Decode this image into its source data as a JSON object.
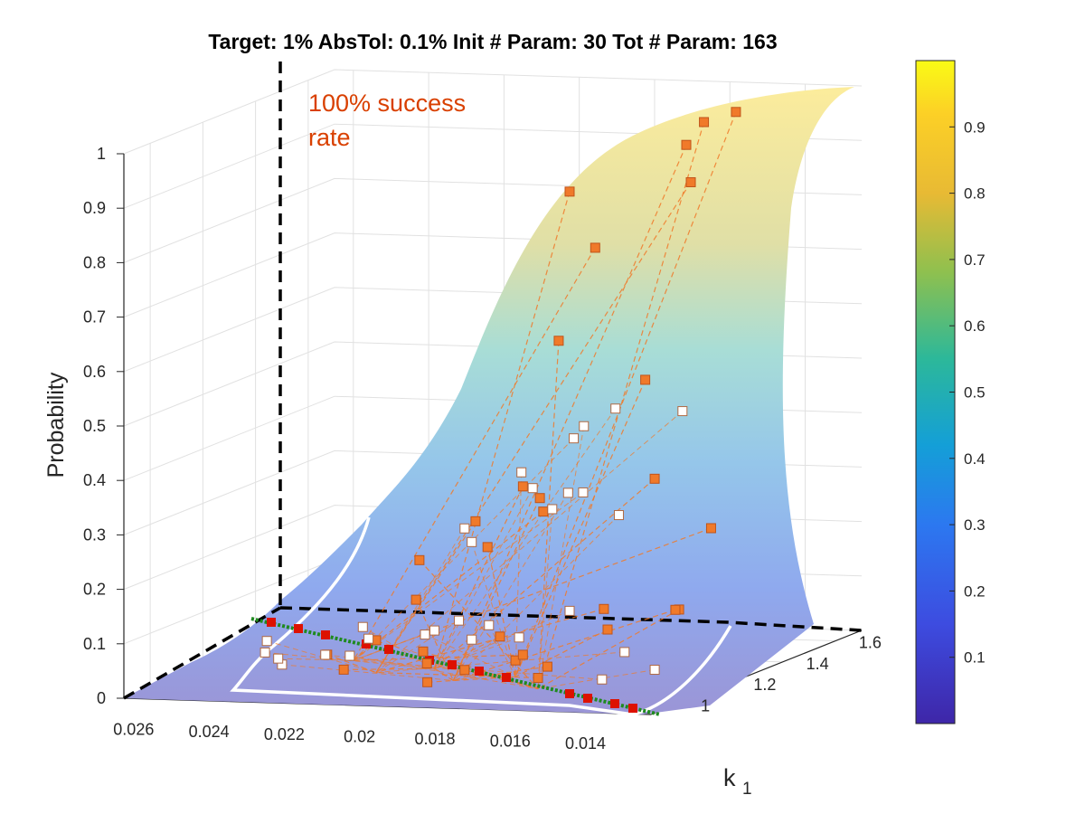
{
  "chart_data": {
    "type": "surface3d",
    "title": "Target: 1%  AbsTol: 0.1%  Init # Param: 30  Tot # Param: 163",
    "zlabel": "Probability",
    "xlabel": "k1",
    "xlabel_main": "k",
    "xlabel_sub": "1",
    "annotation_line1": "100% success",
    "annotation_line2": "rate",
    "x_ticks": [
      "0.026",
      "0.024",
      "0.022",
      "0.02",
      "0.018",
      "0.016",
      "0.014"
    ],
    "y_ticks": [
      "1",
      "1.2",
      "1.4",
      "1.6"
    ],
    "z_ticks": [
      "0",
      "0.1",
      "0.2",
      "0.3",
      "0.4",
      "0.5",
      "0.6",
      "0.7",
      "0.8",
      "0.9",
      "1"
    ],
    "colorbar_ticks": [
      "0.1",
      "0.2",
      "0.3",
      "0.4",
      "0.5",
      "0.6",
      "0.7",
      "0.8",
      "0.9"
    ],
    "colorbar_range": [
      0,
      1
    ],
    "colormap": [
      "#3e26a8",
      "#2f6ffb",
      "#15a7d4",
      "#2cc29a",
      "#a6c43c",
      "#fbb937",
      "#f9fb15"
    ],
    "surface_alpha": 0.45,
    "grid": true,
    "accent_colors": {
      "annotation": "#d94000",
      "marker": "#f07a2a",
      "boundary": "#000000",
      "contour": "#ffffff",
      "line_red": "#dd1100",
      "line_green": "#1f8a1f"
    },
    "xlim": [
      0.0125,
      0.0265
    ],
    "ylim": [
      0.9,
      1.7
    ],
    "zlim": [
      0,
      1
    ],
    "surface": {
      "logistic_center_x": 0.0168,
      "logistic_scale_x": 0.00135,
      "y_effect_center": 1.25,
      "y_effect_scale": 0.45
    },
    "series": [
      {
        "name": "Tot # Param",
        "points": [
          {
            "x": 0.0155,
            "y": 1.53,
            "z": 0.96
          },
          {
            "x": 0.015,
            "y": 1.58,
            "z": 0.97
          },
          {
            "x": 0.0152,
            "y": 1.42,
            "z": 0.94
          },
          {
            "x": 0.0162,
            "y": 1.12,
            "z": 0.91
          },
          {
            "x": 0.0148,
            "y": 1.38,
            "z": 0.88
          },
          {
            "x": 0.0158,
            "y": 1.16,
            "z": 0.8
          },
          {
            "x": 0.016,
            "y": 1.05,
            "z": 0.65
          },
          {
            "x": 0.0165,
            "y": 1.45,
            "z": 0.5
          },
          {
            "x": 0.0165,
            "y": 1.05,
            "z": 0.36
          },
          {
            "x": 0.0173,
            "y": 1.1,
            "z": 0.37
          },
          {
            "x": 0.018,
            "y": 1.02,
            "z": 0.32
          },
          {
            "x": 0.0176,
            "y": 1.22,
            "z": 0.3
          },
          {
            "x": 0.019,
            "y": 0.95,
            "z": 0.26
          },
          {
            "x": 0.0188,
            "y": 1.18,
            "z": 0.24
          },
          {
            "x": 0.02,
            "y": 1.08,
            "z": 0.16
          },
          {
            "x": 0.0152,
            "y": 1.3,
            "z": 0.35
          },
          {
            "x": 0.0148,
            "y": 1.05,
            "z": 0.16
          },
          {
            "x": 0.0158,
            "y": 1.6,
            "z": 0.2
          },
          {
            "x": 0.0156,
            "y": 1.45,
            "z": 0.08
          },
          {
            "x": 0.0168,
            "y": 1.35,
            "z": 0.06
          },
          {
            "x": 0.015,
            "y": 1.35,
            "z": 0.1
          },
          {
            "x": 0.017,
            "y": 0.97,
            "z": 0.12
          },
          {
            "x": 0.0162,
            "y": 1.0,
            "z": 0.04
          },
          {
            "x": 0.0205,
            "y": 1.0,
            "z": 0.1
          },
          {
            "x": 0.0185,
            "y": 1.05,
            "z": 0.04
          },
          {
            "x": 0.0175,
            "y": 1.1,
            "z": 0.05
          },
          {
            "x": 0.0195,
            "y": 1.05,
            "z": 0.05
          },
          {
            "x": 0.0215,
            "y": 1.02,
            "z": 0.04
          },
          {
            "x": 0.0225,
            "y": 1.1,
            "z": 0.05
          },
          {
            "x": 0.018,
            "y": 1.2,
            "z": 0.04
          },
          {
            "x": 0.021,
            "y": 1.25,
            "z": 0.03
          },
          {
            "x": 0.019,
            "y": 0.98,
            "z": 0.03
          },
          {
            "x": 0.017,
            "y": 1.15,
            "z": 0.03
          }
        ]
      },
      {
        "name": "Init # Param",
        "points": [
          {
            "x": 0.0168,
            "y": 1.38,
            "z": 0.46
          },
          {
            "x": 0.016,
            "y": 1.52,
            "z": 0.43
          },
          {
            "x": 0.017,
            "y": 1.25,
            "z": 0.43
          },
          {
            "x": 0.0175,
            "y": 1.36,
            "z": 0.43
          },
          {
            "x": 0.0172,
            "y": 1.08,
            "z": 0.4
          },
          {
            "x": 0.0168,
            "y": 1.2,
            "z": 0.34
          },
          {
            "x": 0.0183,
            "y": 1.28,
            "z": 0.33
          },
          {
            "x": 0.0185,
            "y": 1.05,
            "z": 0.3
          },
          {
            "x": 0.0178,
            "y": 1.4,
            "z": 0.3
          },
          {
            "x": 0.0182,
            "y": 1.34,
            "z": 0.28
          },
          {
            "x": 0.0195,
            "y": 1.22,
            "z": 0.24
          },
          {
            "x": 0.0172,
            "y": 1.45,
            "z": 0.25
          },
          {
            "x": 0.0162,
            "y": 1.12,
            "z": 0.14
          },
          {
            "x": 0.019,
            "y": 1.1,
            "z": 0.12
          },
          {
            "x": 0.02,
            "y": 1.15,
            "z": 0.09
          },
          {
            "x": 0.0212,
            "y": 1.0,
            "z": 0.07
          },
          {
            "x": 0.0222,
            "y": 1.05,
            "z": 0.06
          },
          {
            "x": 0.023,
            "y": 1.0,
            "z": 0.05
          },
          {
            "x": 0.0245,
            "y": 1.15,
            "z": 0.04
          },
          {
            "x": 0.0255,
            "y": 1.3,
            "z": 0.03
          },
          {
            "x": 0.0238,
            "y": 1.1,
            "z": 0.04
          },
          {
            "x": 0.0228,
            "y": 1.3,
            "z": 0.04
          },
          {
            "x": 0.022,
            "y": 1.4,
            "z": 0.03
          },
          {
            "x": 0.0202,
            "y": 1.32,
            "z": 0.04
          },
          {
            "x": 0.0195,
            "y": 1.4,
            "z": 0.03
          },
          {
            "x": 0.016,
            "y": 1.3,
            "z": 0.03
          },
          {
            "x": 0.0152,
            "y": 1.1,
            "z": 0.02
          },
          {
            "x": 0.0145,
            "y": 1.2,
            "z": 0.02
          },
          {
            "x": 0.021,
            "y": 1.5,
            "z": 0.03
          },
          {
            "x": 0.024,
            "y": 1.45,
            "z": 0.03
          }
        ]
      }
    ]
  }
}
